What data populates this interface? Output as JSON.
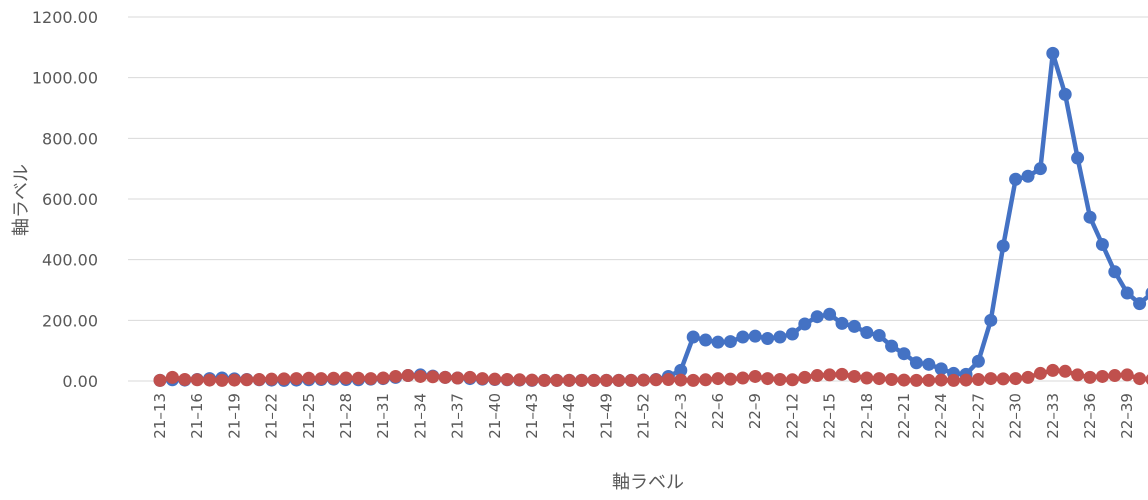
{
  "chart_data": {
    "type": "line",
    "xlabel": "軸ラベル",
    "ylabel": "軸ラベル",
    "ylim": [
      0,
      1200
    ],
    "ytick_values": [
      0,
      200,
      400,
      600,
      800,
      1000,
      1200
    ],
    "ytick_labels": [
      "0.00",
      "200.00",
      "400.00",
      "600.00",
      "800.00",
      "1000.00",
      "1200.00"
    ],
    "grid": "horizontal",
    "categories": [
      "21-13",
      "21-14",
      "21-15",
      "21-16",
      "21-17",
      "21-18",
      "21-19",
      "21-20",
      "21-21",
      "21-22",
      "21-23",
      "21-24",
      "21-25",
      "21-26",
      "21-27",
      "21-28",
      "21-29",
      "21-30",
      "21-31",
      "21-32",
      "21-33",
      "21-34",
      "21-35",
      "21-36",
      "21-37",
      "21-38",
      "21-39",
      "21-40",
      "21-41",
      "21-42",
      "21-43",
      "21-44",
      "21-45",
      "21-46",
      "21-47",
      "21-48",
      "21-49",
      "21-50",
      "21-51",
      "21-52",
      "22-1",
      "22-2",
      "22-3",
      "22-4",
      "22-5",
      "22-6",
      "22-7",
      "22-8",
      "22-9",
      "22-10",
      "22-11",
      "22-12",
      "22-13",
      "22-14",
      "22-15",
      "22-16",
      "22-17",
      "22-18",
      "22-19",
      "22-20",
      "22-21",
      "22-22",
      "22-23",
      "22-24",
      "22-25",
      "22-26",
      "22-27",
      "22-28",
      "22-29",
      "22-30",
      "22-31",
      "22-32",
      "22-33",
      "22-34",
      "22-35",
      "22-36",
      "22-37",
      "22-38",
      "22-39",
      "22-40",
      "22-41"
    ],
    "visible_tick_labels": [
      "21–13",
      "21–16",
      "21–19",
      "21–22",
      "21–25",
      "21–28",
      "21–31",
      "21–34",
      "21–37",
      "21–40",
      "21–43",
      "21–46",
      "21–49",
      "21–52",
      "22–3",
      "22–6",
      "22–9",
      "22–12",
      "22–15",
      "22–18",
      "22–21",
      "22–24",
      "22–27",
      "22–30",
      "22–33",
      "22–36",
      "22–39"
    ],
    "series": [
      {
        "color": "#4472C4",
        "values": [
          2,
          4,
          3,
          5,
          8,
          10,
          7,
          5,
          4,
          3,
          2,
          3,
          4,
          5,
          6,
          5,
          4,
          6,
          8,
          12,
          18,
          20,
          16,
          12,
          10,
          8,
          6,
          5,
          4,
          3,
          2,
          2,
          2,
          2,
          2,
          2,
          2,
          2,
          2,
          3,
          5,
          15,
          35,
          145,
          135,
          128,
          130,
          145,
          148,
          140,
          145,
          155,
          188,
          212,
          220,
          190,
          180,
          160,
          150,
          115,
          90,
          60,
          55,
          40,
          25,
          22,
          65,
          200,
          445,
          665,
          675,
          700,
          1080,
          945,
          735,
          540,
          450,
          360,
          290,
          255,
          290
        ]
      },
      {
        "color": "#C0504D",
        "values": [
          2,
          12,
          5,
          4,
          3,
          2,
          3,
          4,
          5,
          6,
          7,
          8,
          9,
          8,
          9,
          10,
          9,
          8,
          10,
          15,
          18,
          15,
          14,
          12,
          10,
          12,
          8,
          6,
          5,
          4,
          3,
          2,
          2,
          2,
          2,
          2,
          2,
          2,
          2,
          3,
          4,
          5,
          3,
          2,
          4,
          8,
          6,
          10,
          15,
          8,
          5,
          4,
          12,
          18,
          20,
          22,
          15,
          10,
          8,
          5,
          3,
          2,
          2,
          3,
          2,
          3,
          5,
          8,
          7,
          8,
          12,
          25,
          35,
          32,
          20,
          12,
          15,
          18,
          20,
          8,
          5
        ]
      }
    ]
  }
}
